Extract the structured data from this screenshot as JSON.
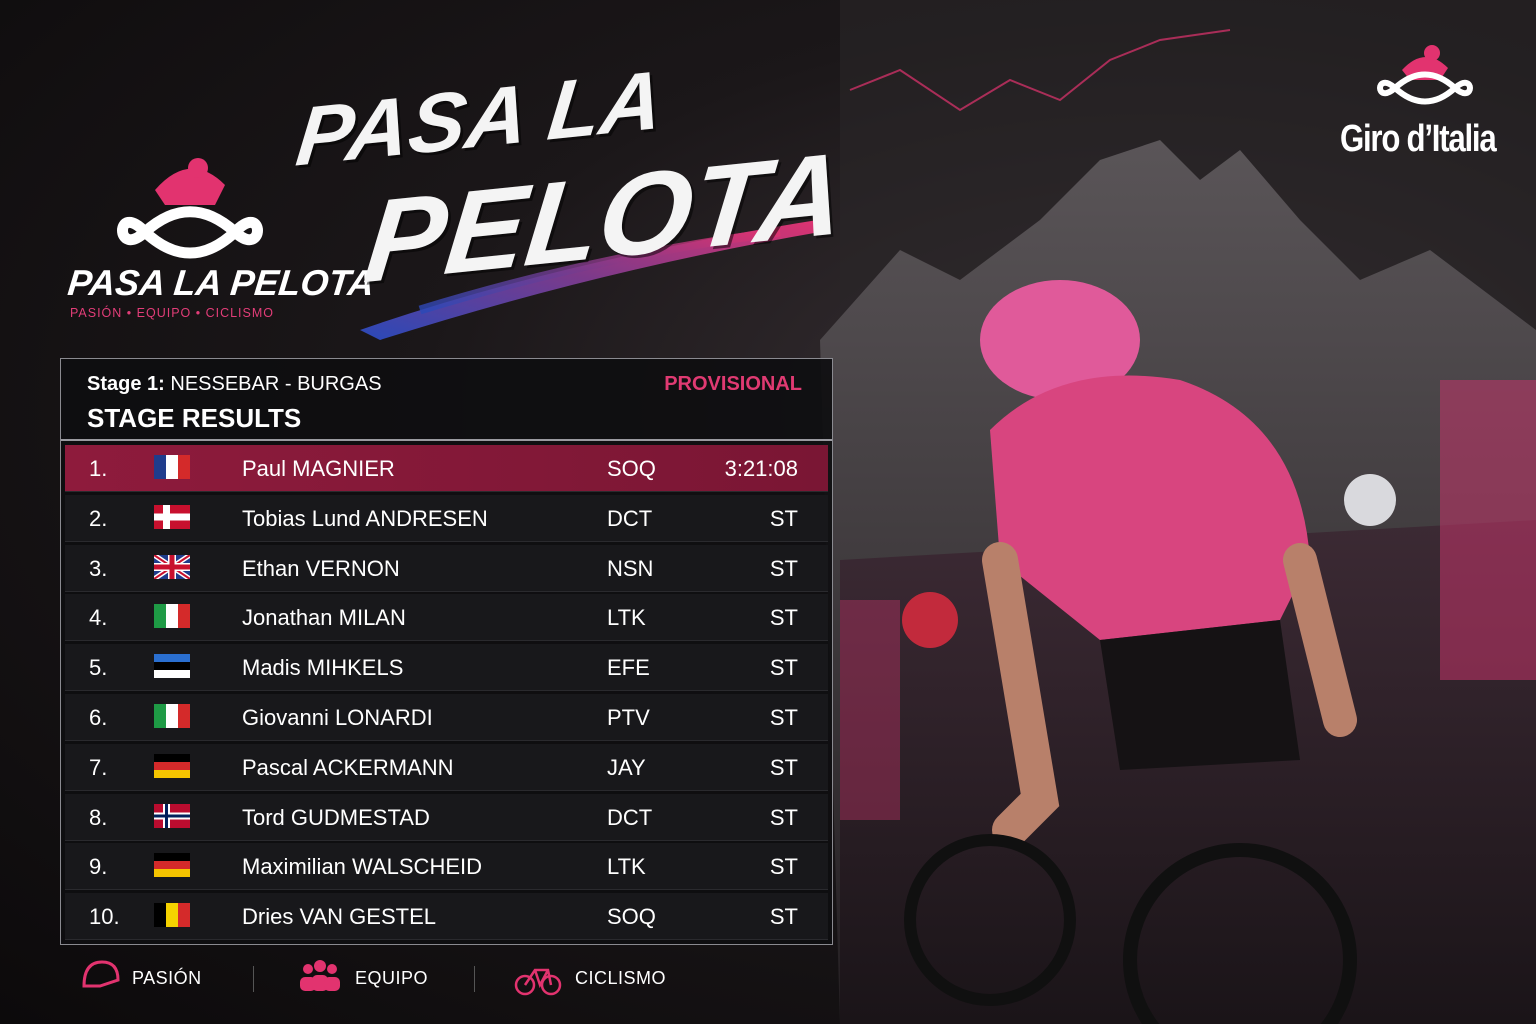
{
  "brand": {
    "logo_title": "PASA LA PELOTA",
    "logo_tagline": "PASIÓN • EQUIPO • CICLISMO"
  },
  "headline": {
    "line1": "PASA LA",
    "line2": "PELOTA"
  },
  "sponsor": "Giro d’Italia",
  "results": {
    "stage_label": "Stage 1:",
    "route": "NESSEBAR - BURGAS",
    "status": "PROVISIONAL",
    "heading": "STAGE RESULTS",
    "rows": [
      [
        "1.",
        "Paul MAGNIER",
        "SOQ",
        "3:21:08"
      ],
      [
        "2.",
        "Tobias Lund ANDRESEN",
        "DCT",
        "ST"
      ],
      [
        "3.",
        "Ethan VERNON",
        "NSN",
        "ST"
      ],
      [
        "4.",
        "Jonathan MILAN",
        "LTK",
        "ST"
      ],
      [
        "5.",
        "Madis MIHKELS",
        "EFE",
        "ST"
      ],
      [
        "6.",
        "Giovanni LONARDI",
        "PTV",
        "ST"
      ],
      [
        "7.",
        "Pascal ACKERMANN",
        "JAY",
        "ST"
      ],
      [
        "8.",
        "Tord GUDMESTAD",
        "DCT",
        "ST"
      ],
      [
        "9.",
        "Maximilian WALSCHEID",
        "LTK",
        "ST"
      ],
      [
        "10.",
        "Dries VAN GESTEL",
        "SOQ",
        "ST"
      ]
    ]
  },
  "footer": [
    "PASIÓN",
    "EQUIPO",
    "CICLISMO"
  ]
}
